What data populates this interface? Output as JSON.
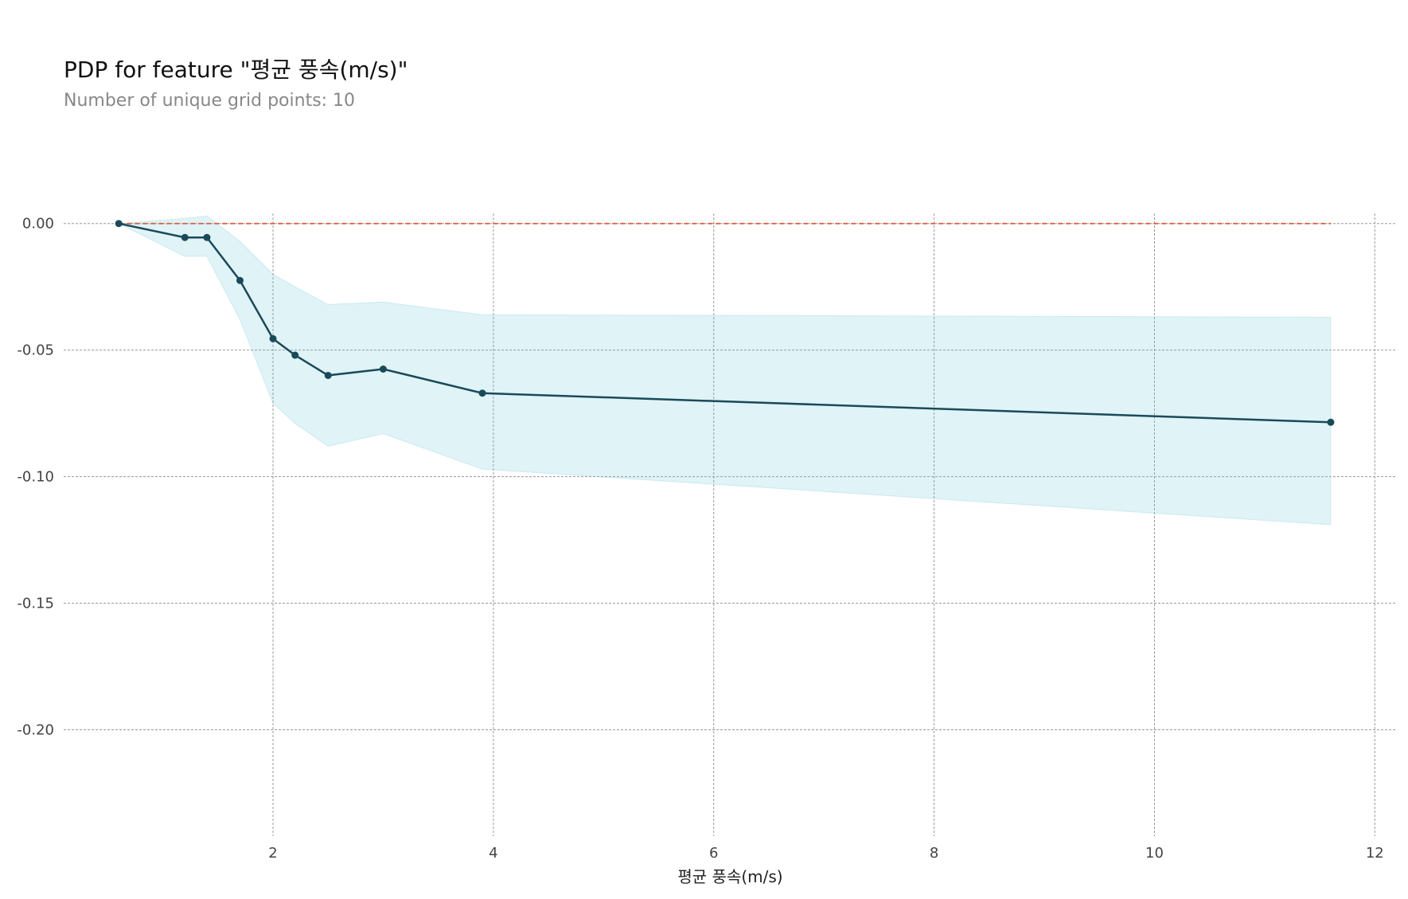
{
  "title": "PDP for feature \"평균 풍속(m/s)\"",
  "subtitle": "Number of unique grid points: 10",
  "chart_data": {
    "type": "line",
    "title": "PDP for feature \"평균 풍속(m/s)\"",
    "subtitle": "Number of unique grid points: 10",
    "xlabel": "평균 풍속(m/s)",
    "ylabel": "",
    "xlim": [
      0.1,
      12.2
    ],
    "ylim": [
      -0.242,
      0.004
    ],
    "x_ticks": [
      2,
      4,
      6,
      8,
      10,
      12
    ],
    "x_tick_labels": [
      "2",
      "4",
      "6",
      "8",
      "10",
      "12"
    ],
    "y_ticks": [
      0.0,
      -0.05,
      -0.1,
      -0.15,
      -0.2
    ],
    "y_tick_labels": [
      "0.00",
      "-0.05",
      "-0.10",
      "-0.15",
      "-0.20"
    ],
    "grid": true,
    "x": [
      0.6,
      1.2,
      1.4,
      1.7,
      2.0,
      2.2,
      2.5,
      3.0,
      3.9,
      11.6
    ],
    "series": [
      {
        "values": [
          0.0,
          -0.0055,
          -0.0055,
          -0.0225,
          -0.0455,
          -0.052,
          -0.06,
          -0.0575,
          -0.067,
          -0.0785
        ],
        "color": "#1a4a5a"
      }
    ],
    "band": {
      "upper": [
        0.0,
        0.002,
        0.003,
        -0.007,
        -0.02,
        -0.025,
        -0.032,
        -0.031,
        -0.036,
        -0.037
      ],
      "lower": [
        0.0,
        -0.013,
        -0.013,
        -0.038,
        -0.071,
        -0.079,
        -0.088,
        -0.083,
        -0.097,
        -0.119
      ],
      "color": "#66c2d9"
    },
    "baseline": {
      "value": 0.0,
      "color": "#e05a3a"
    },
    "grid_color": "#9a9a9a"
  }
}
